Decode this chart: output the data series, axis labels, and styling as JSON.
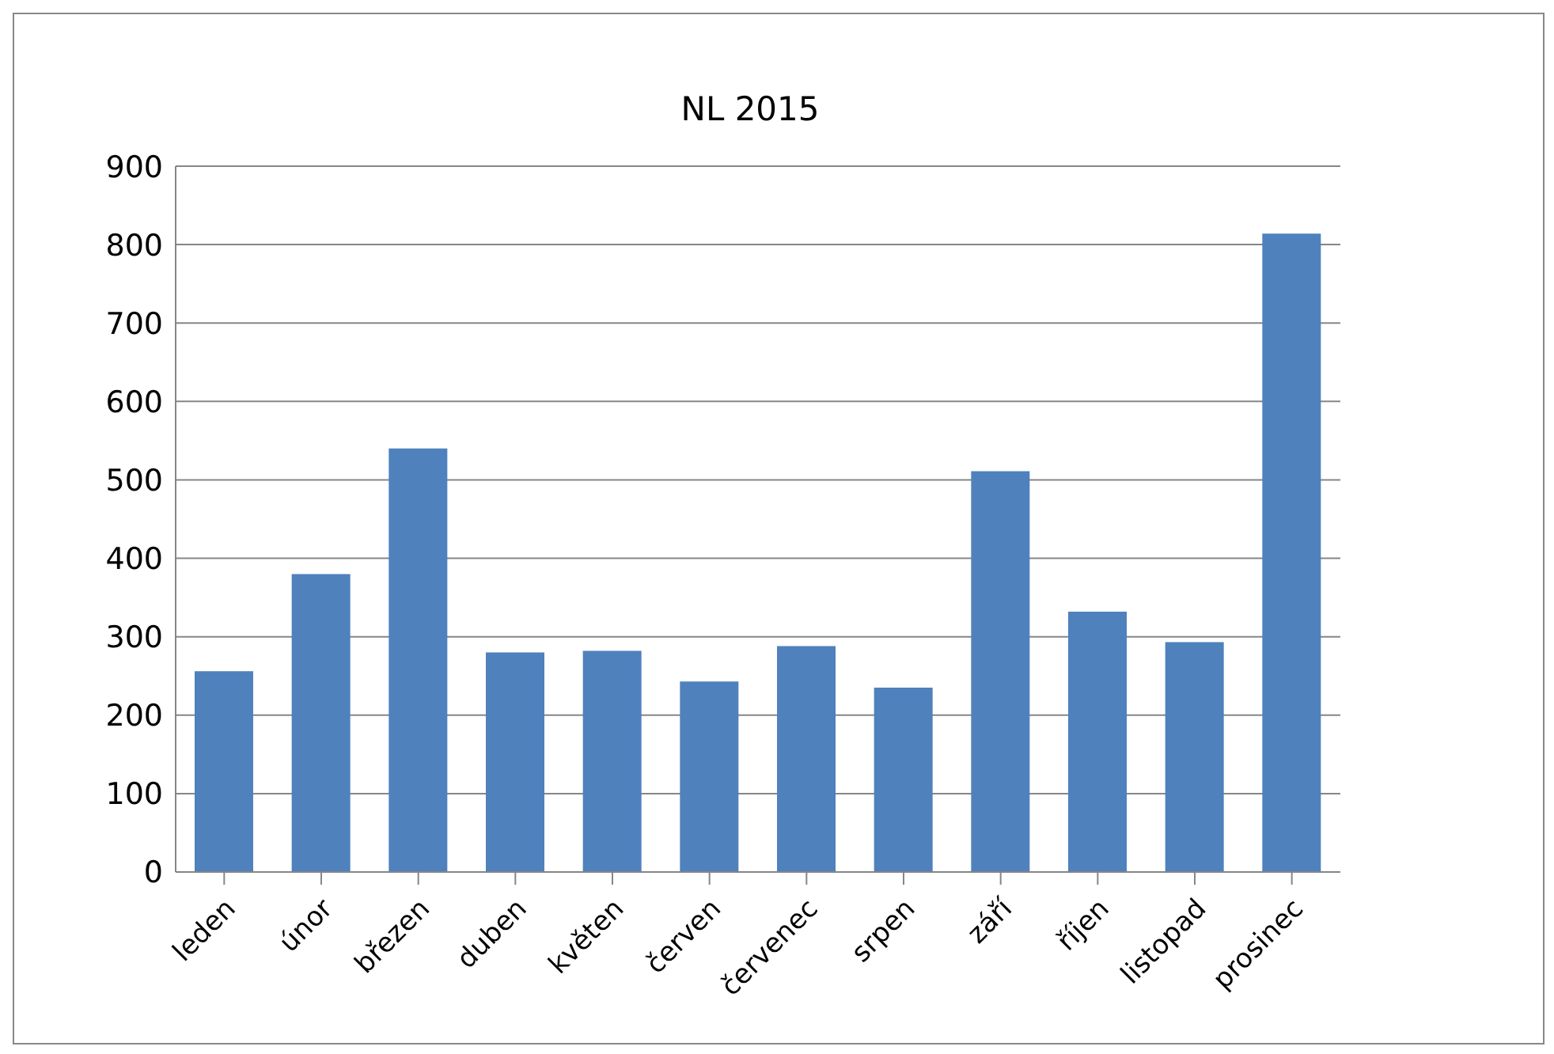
{
  "chart_data": {
    "type": "bar",
    "title": "NL 2015",
    "categories": [
      "leden",
      "únor",
      "březen",
      "duben",
      "květen",
      "červen",
      "červenec",
      "srpen",
      "září",
      "říjen",
      "listopad",
      "prosinec"
    ],
    "values": [
      256,
      380,
      540,
      280,
      282,
      243,
      288,
      235,
      511,
      332,
      293,
      814
    ],
    "color": "#4f81bd",
    "ylim": [
      0,
      900
    ],
    "yticks": [
      0,
      100,
      200,
      300,
      400,
      500,
      600,
      700,
      800,
      900
    ],
    "grid": "y",
    "legend": false
  }
}
